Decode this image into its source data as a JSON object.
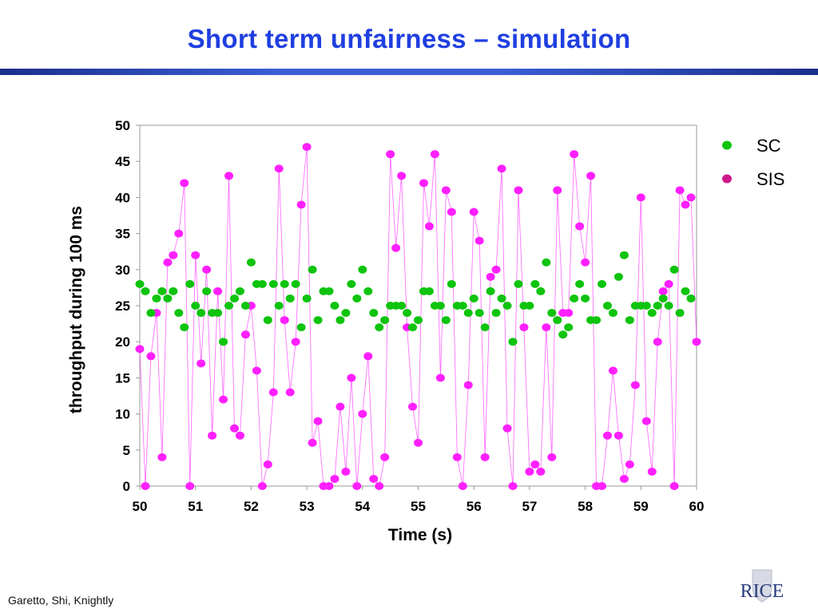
{
  "slide": {
    "title": "Short term unfairness – simulation",
    "footer": "Garetto, Shi, Knightly",
    "logo_text": "RICE"
  },
  "colors": {
    "title": "#1f3fe0",
    "sc": "#0ec40e",
    "sis": "#ff1fff",
    "sis_legend": "#d0188a"
  },
  "chart_data": {
    "type": "scatter",
    "title": "",
    "xlabel": "Time (s)",
    "ylabel": "throughput during 100 ms",
    "xlim": [
      50,
      60
    ],
    "ylim": [
      0,
      50
    ],
    "xticks": [
      50,
      51,
      52,
      53,
      54,
      55,
      56,
      57,
      58,
      59,
      60
    ],
    "yticks": [
      0,
      5,
      10,
      15,
      20,
      25,
      30,
      35,
      40,
      45,
      50
    ],
    "legend_position": "top-right",
    "grid": false,
    "series": [
      {
        "name": "SC",
        "marker": "dot",
        "line": false,
        "x": [
          50,
          50.1,
          50.2,
          50.3,
          50.4,
          50.5,
          50.6,
          50.7,
          50.8,
          50.9,
          51,
          51.1,
          51.2,
          51.3,
          51.4,
          51.5,
          51.6,
          51.7,
          51.8,
          51.9,
          52,
          52.1,
          52.2,
          52.3,
          52.4,
          52.5,
          52.6,
          52.7,
          52.8,
          52.9,
          53,
          53.1,
          53.2,
          53.3,
          53.4,
          53.5,
          53.6,
          53.7,
          53.8,
          53.9,
          54,
          54.1,
          54.2,
          54.3,
          54.4,
          54.5,
          54.6,
          54.7,
          54.8,
          54.9,
          55,
          55.1,
          55.2,
          55.3,
          55.4,
          55.5,
          55.6,
          55.7,
          55.8,
          55.9,
          56,
          56.1,
          56.2,
          56.3,
          56.4,
          56.5,
          56.6,
          56.7,
          56.8,
          56.9,
          57,
          57.1,
          57.2,
          57.3,
          57.4,
          57.5,
          57.6,
          57.7,
          57.8,
          57.9,
          58,
          58.1,
          58.2,
          58.3,
          58.4,
          58.5,
          58.6,
          58.7,
          58.8,
          58.9,
          59,
          59.1,
          59.2,
          59.3,
          59.4,
          59.5,
          59.6,
          59.7,
          59.8,
          59.9
        ],
        "y": [
          28,
          27,
          24,
          26,
          27,
          26,
          27,
          24,
          22,
          28,
          25,
          24,
          27,
          24,
          24,
          20,
          25,
          26,
          27,
          25,
          31,
          28,
          28,
          23,
          28,
          25,
          28,
          26,
          28,
          22,
          26,
          30,
          23,
          27,
          27,
          25,
          23,
          24,
          28,
          26,
          30,
          27,
          24,
          22,
          23,
          25,
          25,
          25,
          24,
          22,
          23,
          27,
          27,
          25,
          25,
          23,
          28,
          25,
          25,
          24,
          26,
          24,
          22,
          27,
          24,
          26,
          25,
          20,
          28,
          25,
          25,
          28,
          27,
          31,
          24,
          23,
          21,
          22,
          26,
          28,
          26,
          23,
          23,
          28,
          25,
          24,
          29,
          32,
          23,
          25,
          25,
          25,
          24,
          25,
          26,
          25,
          30,
          24,
          27,
          26
        ]
      },
      {
        "name": "SIS",
        "marker": "dot",
        "line": true,
        "x": [
          50,
          50.1,
          50.2,
          50.3,
          50.4,
          50.5,
          50.6,
          50.7,
          50.8,
          50.9,
          51,
          51.1,
          51.2,
          51.3,
          51.4,
          51.5,
          51.6,
          51.7,
          51.8,
          51.9,
          52,
          52.1,
          52.2,
          52.3,
          52.4,
          52.5,
          52.6,
          52.7,
          52.8,
          52.9,
          53,
          53.1,
          53.2,
          53.3,
          53.4,
          53.5,
          53.6,
          53.7,
          53.8,
          53.9,
          54,
          54.1,
          54.2,
          54.3,
          54.4,
          54.5,
          54.6,
          54.7,
          54.8,
          54.9,
          55,
          55.1,
          55.2,
          55.3,
          55.4,
          55.5,
          55.6,
          55.7,
          55.8,
          55.9,
          56,
          56.1,
          56.2,
          56.3,
          56.4,
          56.5,
          56.6,
          56.7,
          56.8,
          56.9,
          57,
          57.1,
          57.2,
          57.3,
          57.4,
          57.5,
          57.6,
          57.7,
          57.8,
          57.9,
          58,
          58.1,
          58.2,
          58.3,
          58.4,
          58.5,
          58.6,
          58.7,
          58.8,
          58.9,
          59,
          59.1,
          59.2,
          59.3,
          59.4,
          59.5,
          59.6,
          59.7,
          59.8,
          59.9,
          60
        ],
        "y": [
          19,
          0,
          18,
          24,
          4,
          31,
          32,
          35,
          42,
          0,
          32,
          17,
          30,
          7,
          27,
          12,
          43,
          8,
          7,
          21,
          25,
          16,
          0,
          3,
          13,
          44,
          23,
          13,
          20,
          39,
          47,
          6,
          9,
          0,
          0,
          1,
          11,
          2,
          15,
          0,
          10,
          18,
          1,
          0,
          4,
          46,
          33,
          43,
          22,
          11,
          6,
          42,
          36,
          46,
          15,
          41,
          38,
          4,
          0,
          14,
          38,
          34,
          4,
          29,
          30,
          44,
          8,
          0,
          41,
          22,
          2,
          3,
          2,
          22,
          4,
          41,
          24,
          24,
          46,
          36,
          31,
          43,
          0,
          0,
          7,
          16,
          7,
          1,
          3,
          14,
          40,
          9,
          2,
          20,
          27,
          28,
          0,
          41,
          39,
          40,
          20
        ]
      }
    ]
  }
}
